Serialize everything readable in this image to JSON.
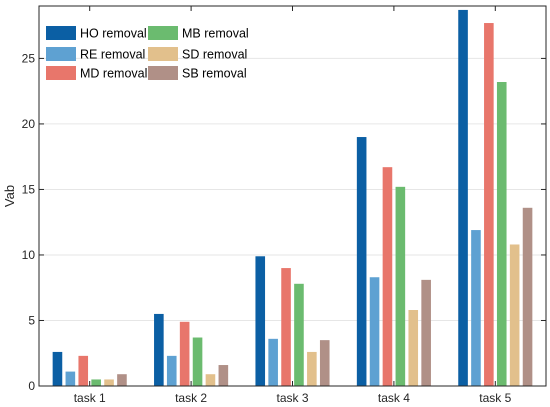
{
  "chart_data": {
    "type": "bar",
    "title": "",
    "xlabel": "",
    "ylabel": "Vab",
    "ylim": [
      0,
      29
    ],
    "yticks": [
      0,
      5,
      10,
      15,
      20,
      25
    ],
    "grid": "y-major",
    "legend_position": "top-left",
    "legend_columns": 2,
    "categories": [
      "task 1",
      "task 2",
      "task 3",
      "task 4",
      "task 5"
    ],
    "series": [
      {
        "name": "HO removal",
        "color": "#0b5fa4",
        "values": [
          2.6,
          5.5,
          9.9,
          19.0,
          28.7
        ]
      },
      {
        "name": "RE removal",
        "color": "#5ea1d2",
        "values": [
          1.1,
          2.3,
          3.6,
          8.3,
          11.9
        ]
      },
      {
        "name": "MD removal",
        "color": "#e8766b",
        "values": [
          2.3,
          4.9,
          9.0,
          16.7,
          27.7
        ]
      },
      {
        "name": "MB removal",
        "color": "#6bbb6f",
        "values": [
          0.5,
          3.7,
          7.8,
          15.2,
          23.2
        ]
      },
      {
        "name": "SD removal",
        "color": "#e2c08c",
        "values": [
          0.5,
          0.9,
          2.6,
          5.8,
          10.8
        ]
      },
      {
        "name": "SB removal",
        "color": "#b09087",
        "values": [
          0.9,
          1.6,
          3.5,
          8.1,
          13.6
        ]
      }
    ]
  }
}
